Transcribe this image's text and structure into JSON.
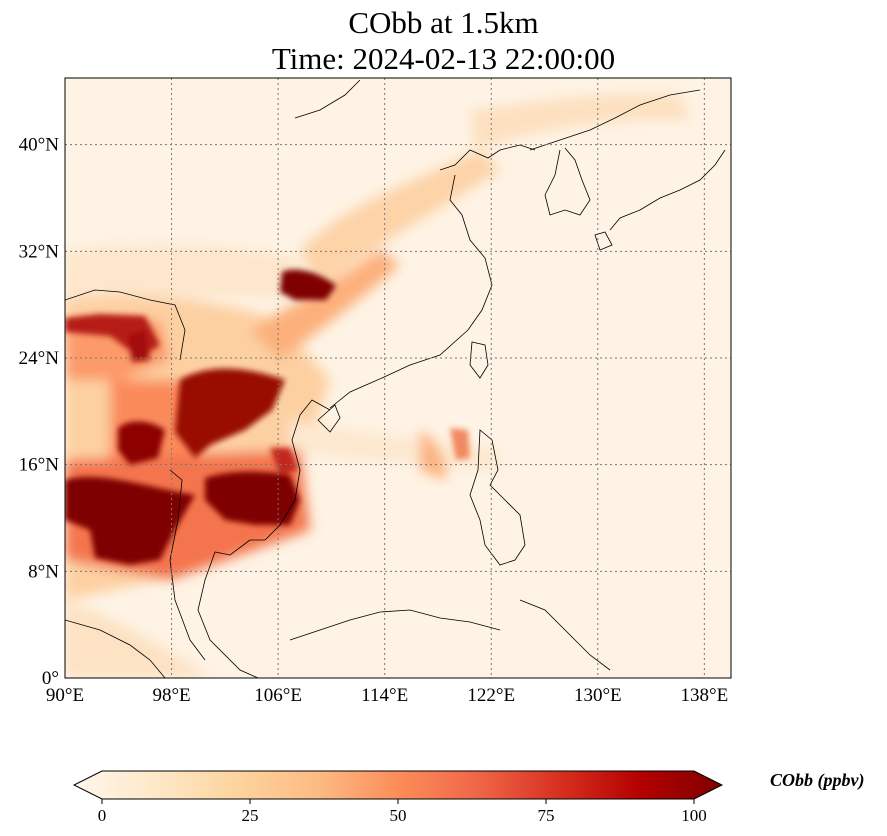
{
  "title": {
    "line1": "CObb at 1.5km",
    "line2": "Time: 2024-02-13 22:00:00"
  },
  "map": {
    "lon_range": [
      90,
      140
    ],
    "lat_range": [
      0,
      45
    ],
    "lon_ticks": [
      {
        "value": 90,
        "label": "90°E"
      },
      {
        "value": 98,
        "label": "98°E"
      },
      {
        "value": 106,
        "label": "106°E"
      },
      {
        "value": 114,
        "label": "114°E"
      },
      {
        "value": 122,
        "label": "122°E"
      },
      {
        "value": 130,
        "label": "130°E"
      },
      {
        "value": 138,
        "label": "138°E"
      }
    ],
    "lat_ticks": [
      {
        "value": 0,
        "label": "0°"
      },
      {
        "value": 8,
        "label": "8°N"
      },
      {
        "value": 16,
        "label": "16°N"
      },
      {
        "value": 24,
        "label": "24°N"
      },
      {
        "value": 32,
        "label": "32°N"
      },
      {
        "value": 40,
        "label": "40°N"
      }
    ],
    "gridlines": true
  },
  "colorbar": {
    "title": "CObb (ppbv)",
    "min": 0,
    "max": 100,
    "ticks": [
      {
        "value": 0,
        "label": "0"
      },
      {
        "value": 25,
        "label": "25"
      },
      {
        "value": 50,
        "label": "50"
      },
      {
        "value": 75,
        "label": "75"
      },
      {
        "value": 100,
        "label": "100"
      }
    ],
    "colormap": [
      "#fff7ec",
      "#fee8c8",
      "#fdd49e",
      "#fdbb84",
      "#fc8d59",
      "#ef6548",
      "#d7301f",
      "#b30000",
      "#7f0000"
    ],
    "extend": "both"
  }
}
